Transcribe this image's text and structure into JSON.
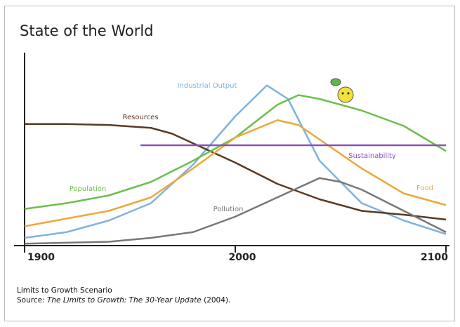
{
  "chart_data": {
    "type": "line",
    "title": "State of the World",
    "xlim": [
      1900,
      2100
    ],
    "xticks": [
      1900,
      2000,
      2100
    ],
    "ylim": [
      0,
      100
    ],
    "series": [
      {
        "name": "Industrial Output",
        "color": "#7fb2e0",
        "x": [
          1900,
          1920,
          1940,
          1960,
          1980,
          2000,
          2015,
          2025,
          2040,
          2060,
          2080,
          2100
        ],
        "values": [
          4,
          7,
          13,
          22,
          42,
          67,
          83,
          76,
          44,
          22,
          13,
          6
        ]
      },
      {
        "name": "Resources",
        "color": "#5a3a22",
        "x": [
          1900,
          1920,
          1940,
          1960,
          1970,
          1980,
          2000,
          2020,
          2040,
          2060,
          2080,
          2100
        ],
        "values": [
          63,
          63,
          62.5,
          61,
          58,
          53,
          43,
          32,
          24,
          18,
          16,
          13.5
        ]
      },
      {
        "name": "Population",
        "color": "#6cbf4a",
        "x": [
          1900,
          1920,
          1940,
          1960,
          1980,
          2000,
          2020,
          2030,
          2040,
          2060,
          2080,
          2100
        ],
        "values": [
          19,
          22,
          26,
          33,
          44,
          56,
          73,
          78,
          76,
          70,
          62,
          49
        ]
      },
      {
        "name": "Pollution",
        "color": "#777777",
        "x": [
          1900,
          1940,
          1960,
          1980,
          2000,
          2020,
          2040,
          2050,
          2060,
          2080,
          2100
        ],
        "values": [
          1,
          2,
          4,
          7,
          15,
          25,
          35,
          33,
          29,
          18,
          7
        ]
      },
      {
        "name": "Food",
        "color": "#f0a63a",
        "x": [
          1900,
          1920,
          1940,
          1960,
          1980,
          2000,
          2020,
          2030,
          2040,
          2060,
          2080,
          2100
        ],
        "values": [
          10,
          14,
          18,
          25,
          40,
          56,
          65,
          62.5,
          55,
          40,
          27,
          21
        ]
      },
      {
        "name": "Sustainability",
        "color": "#8a4fbf",
        "x": [
          1955,
          2100
        ],
        "values": [
          52,
          52
        ]
      }
    ],
    "caption": "Limits to Growth Scenario",
    "source_label": "Source:",
    "source_title": "The Limits to Growth: The 30-Year Update",
    "source_year": "(2004)."
  }
}
